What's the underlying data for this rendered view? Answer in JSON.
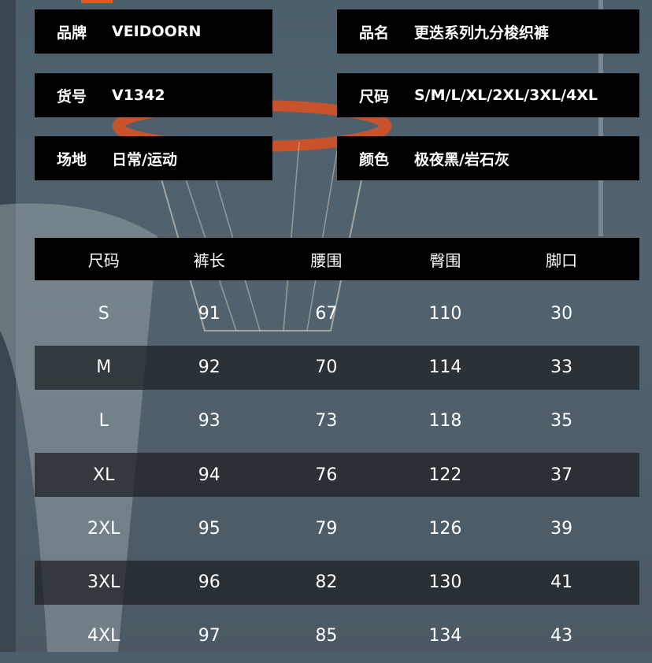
{
  "info": [
    {
      "label": "品牌",
      "value": "VEIDOORN"
    },
    {
      "label": "品名",
      "value": "更迭系列九分梭织裤"
    },
    {
      "label": "货号",
      "value": "V1342"
    },
    {
      "label": "尺码",
      "value": "S/M/L/XL/2XL/3XL/4XL"
    },
    {
      "label": "场地",
      "value": "日常/运动"
    },
    {
      "label": "颜色",
      "value": "极夜黑/岩石灰"
    }
  ],
  "table": {
    "headers": [
      "尺码",
      "裤长",
      "腰围",
      "臀围",
      "脚口"
    ],
    "rows": [
      [
        "S",
        "91",
        "67",
        "110",
        "30"
      ],
      [
        "M",
        "92",
        "70",
        "114",
        "33"
      ],
      [
        "L",
        "93",
        "73",
        "118",
        "35"
      ],
      [
        "XL",
        "94",
        "76",
        "122",
        "37"
      ],
      [
        "2XL",
        "95",
        "79",
        "126",
        "39"
      ],
      [
        "3XL",
        "96",
        "82",
        "130",
        "41"
      ],
      [
        "4XL",
        "97",
        "85",
        "134",
        "43"
      ]
    ]
  },
  "colors": {
    "accent": "#e8541c",
    "panel": "#000000"
  }
}
